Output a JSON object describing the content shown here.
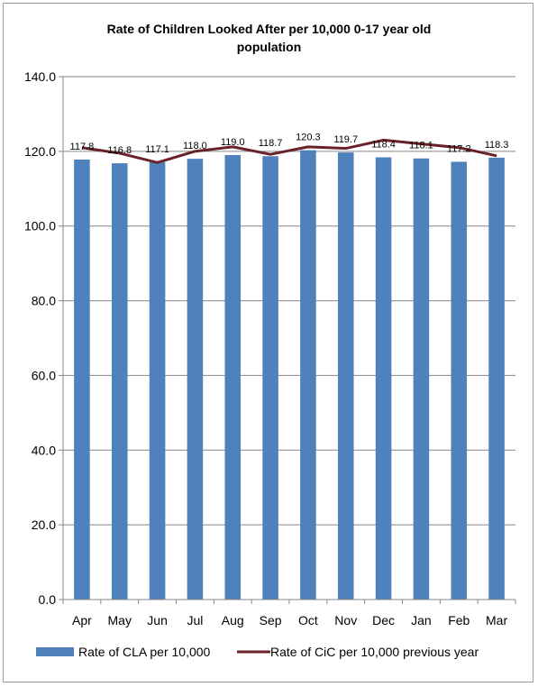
{
  "chart_data": {
    "type": "bar",
    "title_line1": "Rate of Children Looked After per 10,000 0-17 year old",
    "title_line2": "population",
    "categories": [
      "Apr",
      "May",
      "Jun",
      "Jul",
      "Aug",
      "Sep",
      "Oct",
      "Nov",
      "Dec",
      "Jan",
      "Feb",
      "Mar"
    ],
    "series": [
      {
        "name": "Rate of CLA per 10,000",
        "type": "bar",
        "color": "#4f81bd",
        "values": [
          117.8,
          116.8,
          117.1,
          118.0,
          119.0,
          118.7,
          120.3,
          119.7,
          118.4,
          118.1,
          117.2,
          118.3
        ],
        "labels": [
          "117.8",
          "116.8",
          "117.1",
          "118.0",
          "119.0",
          "118.7",
          "120.3",
          "119.7",
          "118.4",
          "118.1",
          "117.2",
          "118.3"
        ]
      },
      {
        "name": "Rate of CiC per 10,000 previous year",
        "type": "line",
        "color": "#6b2128",
        "values": [
          121.0,
          119.5,
          117.0,
          120.0,
          121.2,
          119.2,
          121.2,
          120.8,
          123.0,
          122.0,
          121.0,
          118.8
        ]
      }
    ],
    "ylim": [
      0,
      140
    ],
    "yticks": [
      "0.0",
      "20.0",
      "40.0",
      "60.0",
      "80.0",
      "100.0",
      "120.0",
      "140.0"
    ],
    "ytick_values": [
      0,
      20,
      40,
      60,
      80,
      100,
      120,
      140
    ],
    "grid": true,
    "legend_position": "bottom"
  }
}
